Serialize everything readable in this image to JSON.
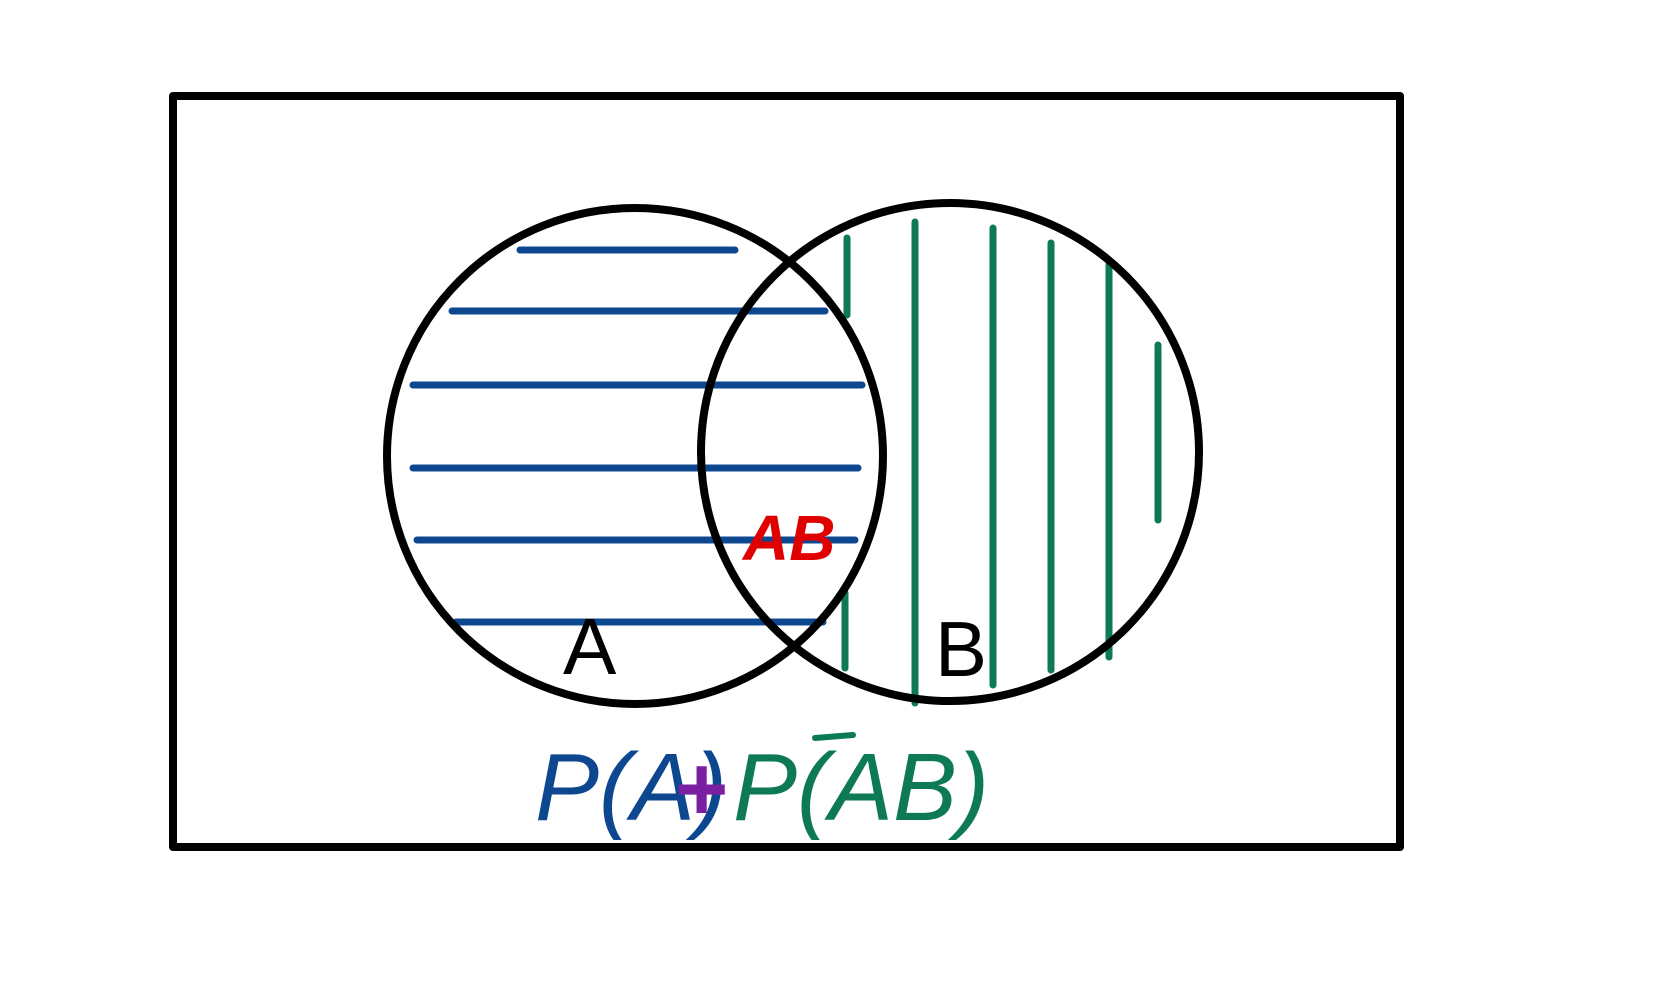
{
  "diagram": {
    "set_a_label": "A",
    "set_b_label": "B",
    "intersection_label": "AB",
    "formula": {
      "term1": "P(A)",
      "plus": "+",
      "term2_prefix": "P(",
      "term2_abar": "A",
      "term2_suffix": "B)"
    }
  },
  "colors": {
    "outline": "#000000",
    "set_a_hatch": "#0d4790",
    "set_b_hatch": "#0e7a55",
    "intersection_label": "#e00000",
    "plus_sign": "#7b1fa2"
  }
}
